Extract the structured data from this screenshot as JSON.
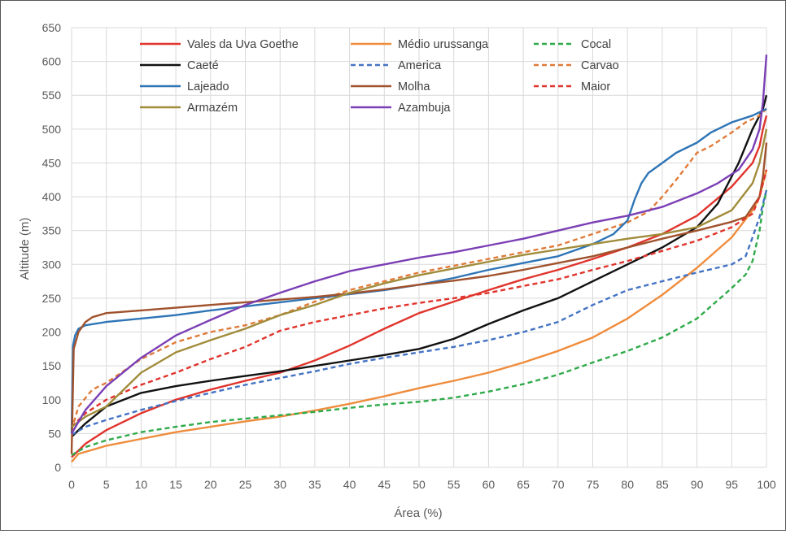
{
  "chart_data": {
    "type": "line",
    "xlabel": "Área (%)",
    "ylabel": "Altitude (m)",
    "xlim": [
      0,
      100
    ],
    "ylim": [
      0,
      650
    ],
    "xticks": [
      0,
      5,
      10,
      15,
      20,
      25,
      30,
      35,
      40,
      45,
      50,
      55,
      60,
      65,
      70,
      75,
      80,
      85,
      90,
      95,
      100
    ],
    "yticks": [
      0,
      50,
      100,
      150,
      200,
      250,
      300,
      350,
      400,
      450,
      500,
      550,
      600,
      650
    ],
    "grid": true,
    "legend_position": "top-left",
    "series": [
      {
        "name": "Vales da Uva Goethe",
        "color": "#e0342c",
        "dash": "solid",
        "x": [
          0,
          2,
          5,
          10,
          15,
          20,
          25,
          30,
          35,
          40,
          45,
          50,
          55,
          60,
          65,
          70,
          75,
          80,
          85,
          90,
          95,
          98,
          99,
          99.5,
          100
        ],
        "y": [
          15,
          35,
          55,
          80,
          100,
          115,
          128,
          140,
          158,
          180,
          205,
          228,
          245,
          262,
          278,
          292,
          308,
          325,
          345,
          372,
          415,
          450,
          475,
          500,
          520
        ]
      },
      {
        "name": "Médio urussanga",
        "color": "#ef8c3c",
        "dash": "solid",
        "x": [
          0,
          1,
          5,
          10,
          15,
          20,
          25,
          30,
          35,
          40,
          45,
          50,
          55,
          60,
          65,
          70,
          75,
          80,
          85,
          90,
          95,
          98,
          99,
          100
        ],
        "y": [
          8,
          20,
          32,
          42,
          52,
          60,
          68,
          75,
          84,
          94,
          105,
          117,
          128,
          140,
          155,
          172,
          192,
          220,
          255,
          295,
          340,
          380,
          400,
          440
        ]
      },
      {
        "name": "Cocal",
        "color": "#2faa4a",
        "dash": "dash",
        "x": [
          0,
          2,
          5,
          10,
          15,
          20,
          25,
          30,
          35,
          40,
          45,
          50,
          55,
          60,
          65,
          70,
          75,
          80,
          85,
          90,
          95,
          97,
          98,
          99,
          99.5,
          100
        ],
        "y": [
          18,
          30,
          40,
          52,
          60,
          67,
          72,
          77,
          82,
          88,
          93,
          97,
          103,
          112,
          123,
          137,
          155,
          172,
          192,
          220,
          265,
          285,
          305,
          350,
          385,
          410
        ]
      },
      {
        "name": "Caeté",
        "color": "#111111",
        "dash": "solid",
        "x": [
          0,
          2,
          5,
          10,
          15,
          20,
          25,
          30,
          35,
          40,
          45,
          50,
          55,
          60,
          65,
          70,
          75,
          80,
          85,
          90,
          93,
          96,
          98,
          99,
          99.5,
          100
        ],
        "y": [
          45,
          65,
          90,
          110,
          120,
          128,
          135,
          142,
          150,
          158,
          166,
          175,
          190,
          212,
          232,
          250,
          275,
          300,
          325,
          355,
          390,
          450,
          500,
          520,
          530,
          550
        ]
      },
      {
        "name": "America",
        "color": "#4473c4",
        "dash": "dash",
        "x": [
          0,
          2,
          5,
          10,
          15,
          20,
          25,
          30,
          35,
          40,
          45,
          50,
          55,
          60,
          65,
          70,
          75,
          80,
          85,
          90,
          95,
          97,
          98,
          99,
          100
        ],
        "y": [
          48,
          60,
          70,
          85,
          98,
          110,
          122,
          132,
          142,
          153,
          162,
          170,
          178,
          188,
          200,
          215,
          240,
          262,
          275,
          288,
          300,
          312,
          340,
          370,
          410
        ]
      },
      {
        "name": "Carvao",
        "color": "#e07b39",
        "dash": "dash",
        "x": [
          0,
          1,
          3,
          5,
          10,
          15,
          20,
          25,
          30,
          35,
          40,
          45,
          50,
          55,
          60,
          65,
          70,
          75,
          80,
          83,
          85,
          87,
          90,
          92,
          95,
          97,
          99,
          100
        ],
        "y": [
          55,
          90,
          115,
          125,
          160,
          185,
          200,
          210,
          225,
          245,
          262,
          275,
          288,
          298,
          308,
          318,
          328,
          345,
          362,
          378,
          400,
          425,
          465,
          475,
          495,
          510,
          520,
          530
        ]
      },
      {
        "name": "Lajeado",
        "color": "#2e75b6",
        "dash": "solid",
        "x": [
          0,
          0.2,
          0.5,
          1,
          2,
          5,
          10,
          15,
          20,
          25,
          30,
          35,
          40,
          45,
          50,
          55,
          60,
          65,
          70,
          75,
          78,
          80,
          81,
          82,
          83,
          85,
          87,
          90,
          92,
          95,
          98,
          100
        ],
        "y": [
          50,
          180,
          195,
          205,
          210,
          215,
          220,
          225,
          232,
          238,
          244,
          250,
          256,
          262,
          270,
          280,
          292,
          302,
          312,
          330,
          345,
          365,
          395,
          420,
          435,
          450,
          465,
          480,
          495,
          510,
          520,
          530
        ]
      },
      {
        "name": "Molha",
        "color": "#a0522d",
        "dash": "solid",
        "x": [
          0,
          0.3,
          1,
          2,
          3,
          5,
          10,
          15,
          20,
          25,
          30,
          35,
          40,
          45,
          50,
          55,
          60,
          65,
          70,
          75,
          80,
          85,
          90,
          95,
          97,
          98,
          99,
          99.5,
          100
        ],
        "y": [
          20,
          175,
          200,
          215,
          222,
          228,
          232,
          236,
          240,
          244,
          248,
          252,
          257,
          263,
          270,
          276,
          283,
          292,
          302,
          312,
          325,
          338,
          350,
          363,
          370,
          385,
          400,
          430,
          480
        ]
      },
      {
        "name": "Maior",
        "color": "#e0342c",
        "dash": "dash",
        "x": [
          0,
          2,
          5,
          10,
          15,
          20,
          25,
          30,
          35,
          40,
          45,
          50,
          55,
          60,
          65,
          70,
          75,
          80,
          85,
          90,
          95,
          98,
          99,
          100
        ],
        "y": [
          60,
          80,
          100,
          122,
          140,
          160,
          178,
          202,
          215,
          225,
          235,
          243,
          250,
          258,
          268,
          278,
          292,
          305,
          320,
          335,
          355,
          375,
          400,
          440
        ]
      },
      {
        "name": "Armazém",
        "color": "#a08c3a",
        "dash": "solid",
        "x": [
          0,
          2,
          5,
          10,
          15,
          20,
          25,
          30,
          35,
          40,
          45,
          50,
          55,
          60,
          65,
          70,
          75,
          80,
          85,
          90,
          95,
          98,
          99,
          100
        ],
        "y": [
          60,
          75,
          90,
          140,
          170,
          188,
          205,
          225,
          240,
          258,
          272,
          284,
          294,
          304,
          314,
          322,
          330,
          338,
          345,
          355,
          380,
          420,
          450,
          500
        ]
      },
      {
        "name": "Azambuja",
        "color": "#7b3fb5",
        "dash": "solid",
        "x": [
          0,
          2,
          5,
          10,
          15,
          20,
          25,
          30,
          35,
          40,
          45,
          50,
          55,
          60,
          65,
          70,
          75,
          80,
          85,
          90,
          93,
          96,
          98,
          99,
          99.5,
          100
        ],
        "y": [
          50,
          85,
          120,
          162,
          195,
          218,
          240,
          258,
          275,
          290,
          300,
          310,
          318,
          328,
          338,
          350,
          362,
          372,
          385,
          405,
          420,
          440,
          470,
          500,
          540,
          610
        ]
      }
    ]
  }
}
